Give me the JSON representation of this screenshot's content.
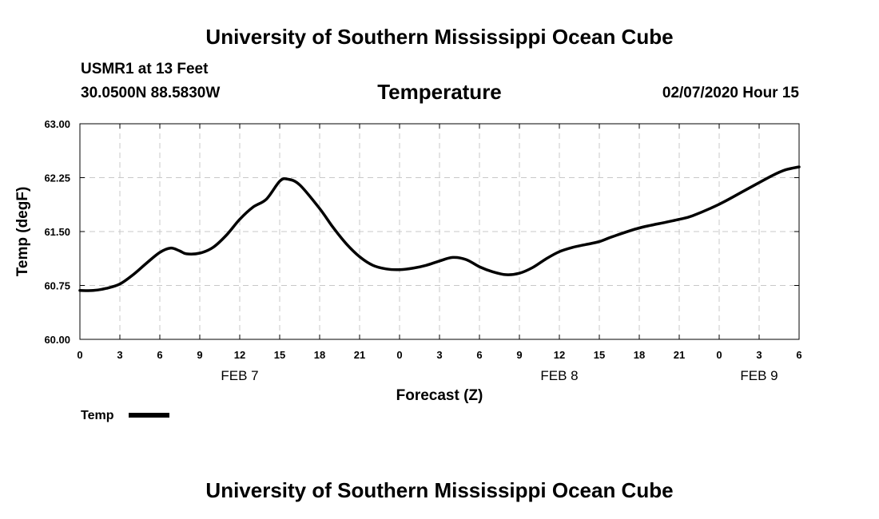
{
  "header": {
    "title_top": "University of Southern Mississippi Ocean Cube",
    "station": "USMR1 at 13 Feet",
    "coords": "30.0500N 88.5830W",
    "variable_title": "Temperature",
    "run_time": "02/07/2020 Hour 15",
    "title_bottom": "University of Southern Mississippi Ocean Cube"
  },
  "colors": {
    "line": "#000000",
    "grid": "#c8c8c8",
    "frame": "#000000"
  },
  "chart_data": {
    "type": "line",
    "title": "Temperature",
    "xlabel": "Forecast (Z)",
    "ylabel": "Temp (degF)",
    "ylim": [
      60.0,
      63.0
    ],
    "xlim": [
      0,
      54
    ],
    "grid": true,
    "y_ticks": [
      60.0,
      60.75,
      61.5,
      62.25,
      63.0
    ],
    "y_tick_labels": [
      "60.00",
      "60.75",
      "61.50",
      "62.25",
      "63.00"
    ],
    "x_ticks": [
      0,
      3,
      6,
      9,
      12,
      15,
      18,
      21,
      24,
      27,
      30,
      33,
      36,
      39,
      42,
      45,
      48,
      51,
      54
    ],
    "x_tick_labels": [
      "0",
      "3",
      "6",
      "9",
      "12",
      "15",
      "18",
      "21",
      "0",
      "3",
      "6",
      "9",
      "12",
      "15",
      "18",
      "21",
      "0",
      "3",
      "6"
    ],
    "date_labels": [
      {
        "label": "FEB 7",
        "x": 12
      },
      {
        "label": "FEB 8",
        "x": 36
      },
      {
        "label": "FEB 9",
        "x": 51
      }
    ],
    "legend": {
      "label": "Temp",
      "placement": "bottom-left"
    },
    "series": [
      {
        "name": "Temp",
        "x": [
          0,
          1,
          2,
          3,
          4,
          5,
          6,
          6.8,
          7.5,
          8,
          9,
          10,
          11,
          12,
          13,
          14,
          15,
          15.6,
          16.5,
          18,
          19,
          20,
          21,
          22,
          23,
          24,
          25,
          26,
          27,
          28,
          29,
          30,
          31,
          32,
          33,
          34,
          35,
          36,
          37,
          38,
          39,
          40,
          42,
          44,
          45,
          46,
          48,
          50,
          52,
          53,
          54
        ],
        "values": [
          60.68,
          60.68,
          60.71,
          60.77,
          60.9,
          61.06,
          61.21,
          61.27,
          61.23,
          61.19,
          61.2,
          61.28,
          61.45,
          61.67,
          61.84,
          61.95,
          62.2,
          62.23,
          62.15,
          61.82,
          61.56,
          61.33,
          61.15,
          61.03,
          60.98,
          60.97,
          60.99,
          61.03,
          61.09,
          61.14,
          61.11,
          61.01,
          60.94,
          60.9,
          60.92,
          61.0,
          61.12,
          61.22,
          61.28,
          61.32,
          61.36,
          61.43,
          61.55,
          61.63,
          61.67,
          61.72,
          61.88,
          62.08,
          62.28,
          62.36,
          62.4
        ]
      }
    ]
  }
}
